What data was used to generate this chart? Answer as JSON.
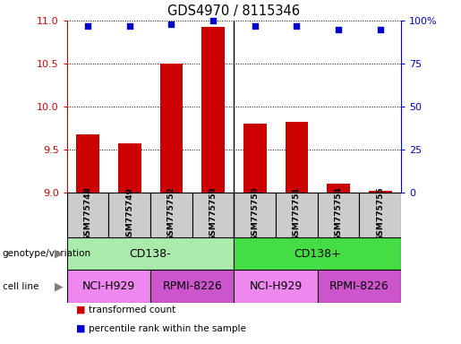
{
  "title": "GDS4970 / 8115346",
  "samples": [
    "GSM775748",
    "GSM775749",
    "GSM775752",
    "GSM775753",
    "GSM775750",
    "GSM775751",
    "GSM775754",
    "GSM775755"
  ],
  "bar_values": [
    9.68,
    9.57,
    10.5,
    10.93,
    9.8,
    9.82,
    9.1,
    9.02
  ],
  "dot_values": [
    97,
    97,
    98,
    100,
    97,
    97,
    95,
    95
  ],
  "ylim_left": [
    9.0,
    11.0
  ],
  "ylim_right": [
    0,
    100
  ],
  "yticks_left": [
    9.0,
    9.5,
    10.0,
    10.5,
    11.0
  ],
  "yticks_right": [
    0,
    25,
    50,
    75,
    100
  ],
  "bar_color": "#cc0000",
  "dot_color": "#0000cc",
  "bar_width": 0.55,
  "genotype_groups": [
    {
      "label": "CD138-",
      "color": "#aaeaaa",
      "start": 0,
      "end": 4
    },
    {
      "label": "CD138+",
      "color": "#44dd44",
      "start": 4,
      "end": 8
    }
  ],
  "cell_line_groups": [
    {
      "label": "NCI-H929",
      "color": "#ee88ee",
      "start": 0,
      "end": 2
    },
    {
      "label": "RPMI-8226",
      "color": "#cc55cc",
      "start": 2,
      "end": 4
    },
    {
      "label": "NCI-H929",
      "color": "#ee88ee",
      "start": 4,
      "end": 6
    },
    {
      "label": "RPMI-8226",
      "color": "#cc55cc",
      "start": 6,
      "end": 8
    }
  ],
  "legend_items": [
    {
      "label": "transformed count",
      "color": "#cc0000"
    },
    {
      "label": "percentile rank within the sample",
      "color": "#0000cc"
    }
  ],
  "left_tick_color": "#cc0000",
  "right_tick_color": "#0000cc",
  "tick_label_bg": "#cccccc",
  "grid_color": "#000000"
}
